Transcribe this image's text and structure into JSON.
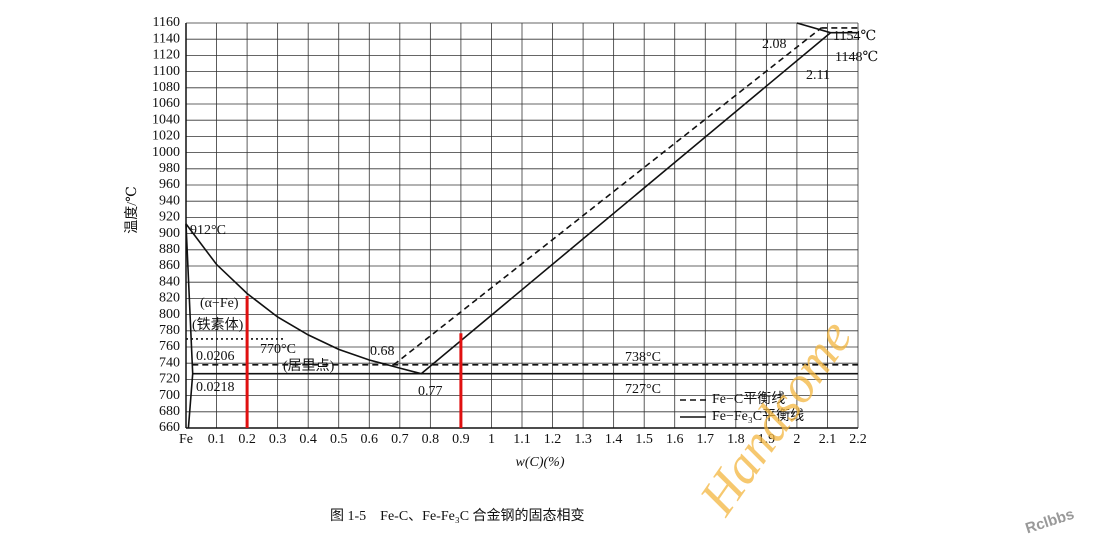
{
  "chart_data": {
    "type": "line",
    "y_label": "温度/℃",
    "x_label": "w(C)(%)",
    "caption": "图 1-5　Fe-C、Fe-Fe₃C 合金钢的固态相变",
    "xlim": [
      0,
      2.2
    ],
    "ylim": [
      660,
      1160
    ],
    "xticks": [
      {
        "value": 0,
        "label": "Fe"
      },
      0.1,
      0.2,
      0.3,
      0.4,
      0.5,
      0.6,
      0.7,
      0.8,
      0.9,
      1.0,
      1.1,
      1.2,
      1.3,
      1.4,
      1.5,
      1.6,
      1.7,
      1.8,
      1.9,
      2.0,
      2.1,
      2.2
    ],
    "yticks": [
      660,
      680,
      700,
      720,
      740,
      760,
      780,
      800,
      820,
      840,
      860,
      880,
      900,
      920,
      940,
      960,
      980,
      1000,
      1020,
      1040,
      1060,
      1080,
      1100,
      1120,
      1140,
      1160
    ],
    "grid": true,
    "series": [
      {
        "name": "Fe−C平衡线",
        "color": "#111111",
        "dash": "6 4",
        "x": [
          0.68,
          2.08,
          null,
          0.0206,
          2.2,
          null,
          2.08,
          2.2
        ],
        "values": [
          738,
          1154,
          null,
          738,
          738,
          null,
          1154,
          1154
        ]
      },
      {
        "name": "Fe−Fe₃C平衡线",
        "color": "#111111",
        "x": [
          0,
          0.1,
          0.2,
          0.3,
          0.4,
          0.5,
          0.6,
          0.7,
          0.77,
          2.11,
          null,
          0.0218,
          2.2,
          null,
          0,
          0.0218,
          0.008,
          null,
          2.0,
          2.11,
          2.2
        ],
        "values": [
          912,
          862,
          826,
          797,
          775,
          757,
          744,
          734,
          727,
          1148,
          null,
          727,
          727,
          null,
          912,
          727,
          660,
          null,
          1160,
          1148,
          1148
        ]
      },
      {
        "color": "#111111",
        "dash": "2 3",
        "x": [
          0,
          0.32
        ],
        "values": [
          770,
          770
        ]
      },
      {
        "color": "#e01010",
        "width": 3,
        "x": [
          0.2,
          0.2,
          null,
          0.9,
          0.9
        ],
        "values": [
          660,
          823,
          null,
          660,
          777
        ]
      }
    ],
    "annotations": [
      "912°C",
      "1154℃",
      "1148℃",
      "2.08",
      "2.11",
      "(α−Fe)",
      "(铁素体)",
      "0.0206",
      "770°C",
      "0.68",
      "(居里点)",
      "738°C",
      "0.0218",
      "0.77",
      "727°C"
    ],
    "watermarks": [
      "Handsome",
      "Rclbbs"
    ]
  }
}
